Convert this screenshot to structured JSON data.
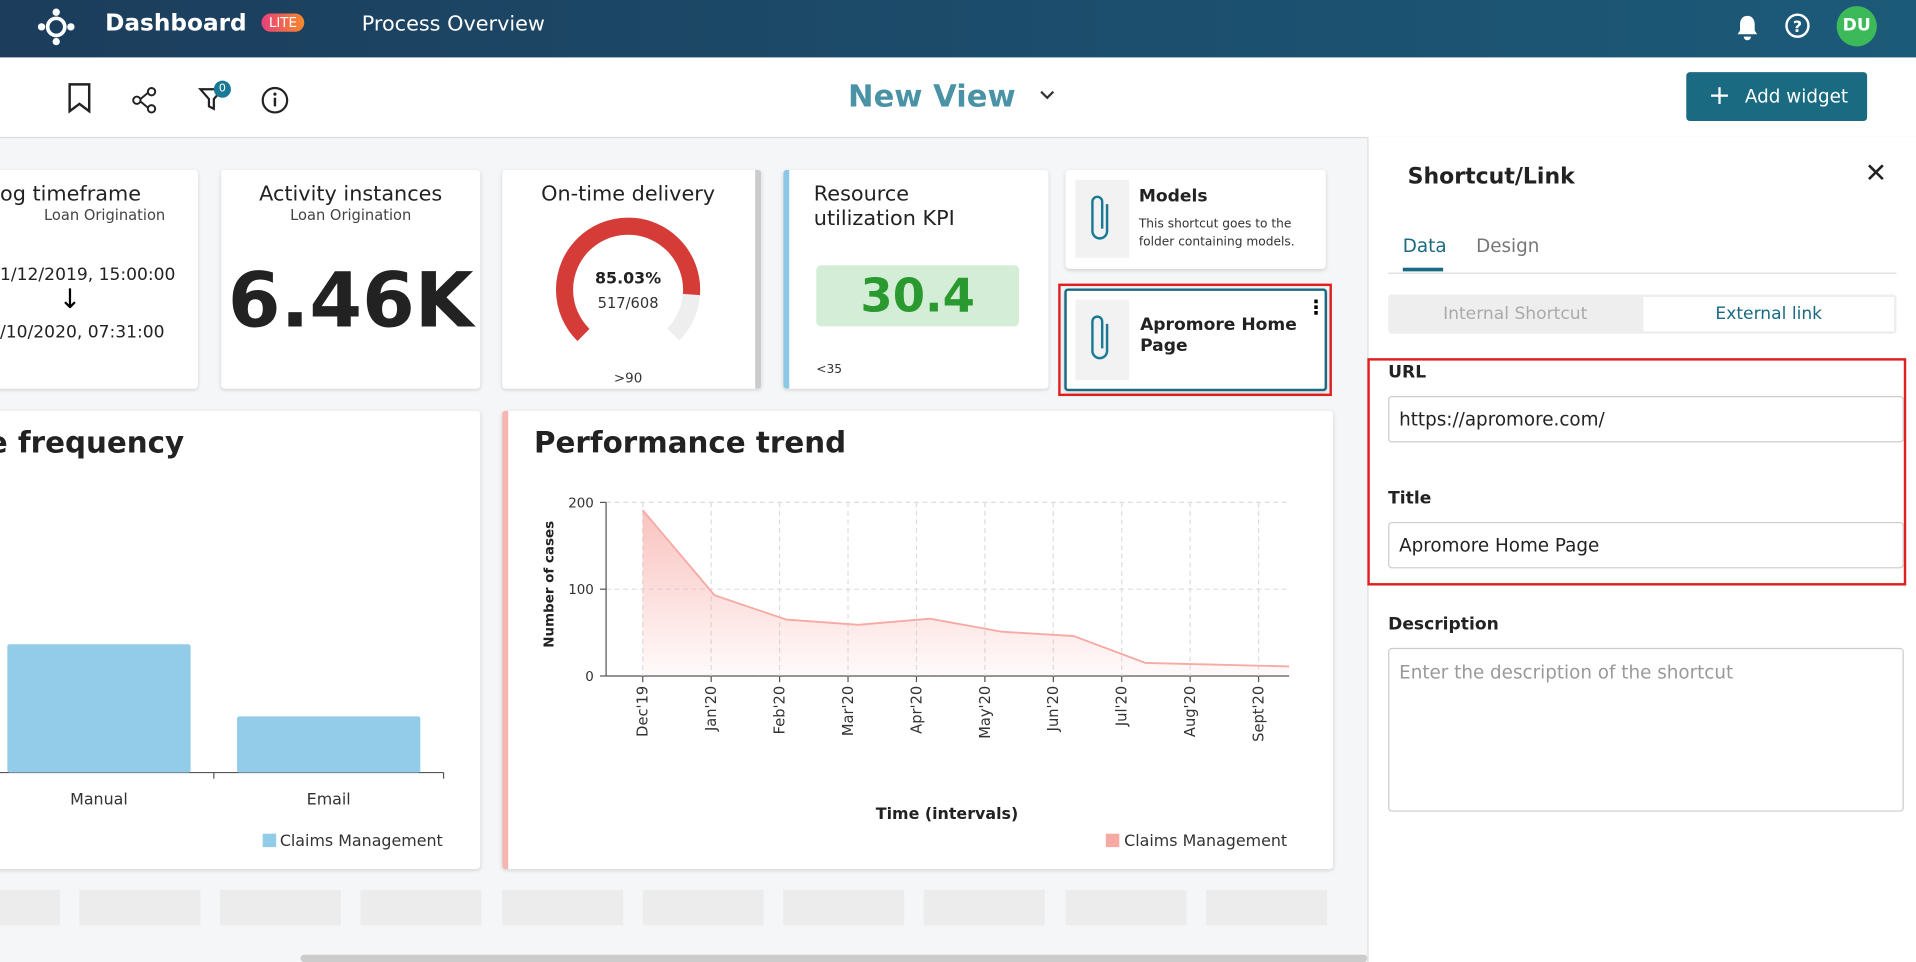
{
  "header": {
    "app_name": "Dashboard",
    "badge": "LITE",
    "page_title": "Process Overview",
    "avatar": "DU"
  },
  "toolbar": {
    "filter_count": "0",
    "view_title": "New View",
    "add_widget": "Add widget"
  },
  "widgets": {
    "timeframe": {
      "title": "og timeframe",
      "subtitle": "Loan Origination",
      "start": "1/12/2019, 15:00:00",
      "end": "/10/2020, 07:31:00"
    },
    "activity": {
      "title": "Activity instances",
      "subtitle": "Loan Origination",
      "value": "6.46K"
    },
    "ontime": {
      "title": "On-time delivery",
      "value": 85.03,
      "value_label": "85.03%",
      "ratio": "517/608",
      "target": ">90"
    },
    "resource": {
      "title": "Resource utilization KPI",
      "value": "30.4",
      "target": "<35"
    },
    "models": {
      "title": "Models",
      "description": "This shortcut goes to the folder containing models."
    },
    "home": {
      "title": "Apromore Home Page"
    }
  },
  "frequency_chart": {
    "type": "bar",
    "title": "e frequency",
    "categories": [
      "Manual",
      "Email"
    ],
    "series": [
      {
        "name": "Claims Management",
        "color": "#93cce8",
        "values": [
          105,
          46
        ]
      }
    ]
  },
  "trend_chart": {
    "type": "area",
    "title": "Performance trend",
    "y_label": "Number of cases",
    "x_label": "Time (intervals)",
    "categories": [
      "Dec'19",
      "Jan'20",
      "Feb'20",
      "Mar'20",
      "Apr'20",
      "May'20",
      "Jun'20",
      "Jul'20",
      "Aug'20",
      "Sept'20"
    ],
    "ylim": [
      0,
      200
    ],
    "yticks": [
      0,
      100,
      200
    ],
    "grid": true,
    "series": [
      {
        "name": "Claims Management",
        "color": "#f7a9a3",
        "values": [
          191,
          93,
          65,
          59,
          66,
          51,
          46,
          15,
          13,
          11
        ]
      }
    ]
  },
  "panel": {
    "title": "Shortcut/Link",
    "tabs": [
      "Data",
      "Design"
    ],
    "toggle": [
      "Internal Shortcut",
      "External link"
    ],
    "url_label": "URL",
    "url_value": "https://apromore.com/",
    "title_label": "Title",
    "title_value": "Apromore Home Page",
    "description_label": "Description",
    "description_placeholder": "Enter the description of the shortcut"
  }
}
